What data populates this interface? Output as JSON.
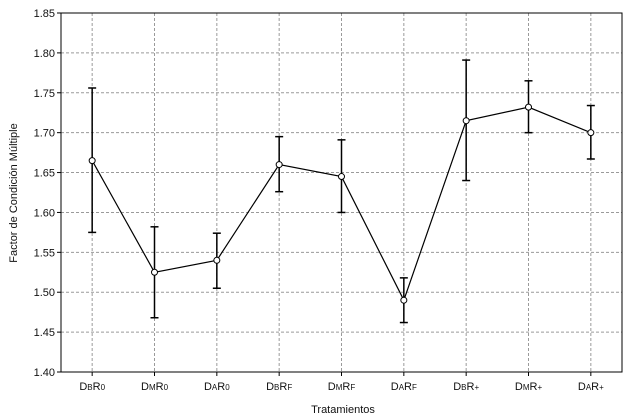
{
  "chart_data": {
    "type": "line",
    "title": "",
    "xlabel": "Tratamientos",
    "ylabel": "Factor de Condición Múltiple",
    "ylim": [
      1.4,
      1.85
    ],
    "yticks": [
      "1.40",
      "1.45",
      "1.50",
      "1.55",
      "1.60",
      "1.65",
      "1.70",
      "1.75",
      "1.80",
      "1.85"
    ],
    "grid": true,
    "grid_style": "dashed",
    "legend": "none",
    "colors": {
      "line": "#000000",
      "marker_fill": "#ffffff",
      "grid": "#9a9a9a",
      "axis": "#000000"
    },
    "categories": [
      {
        "main": "D",
        "sub1": "B",
        "big": "R",
        "sub2": "0"
      },
      {
        "main": "D",
        "sub1": "M",
        "big": "R",
        "sub2": "0"
      },
      {
        "main": "D",
        "sub1": "A",
        "big": "R",
        "sub2": "0"
      },
      {
        "main": "D",
        "sub1": "B",
        "big": "R",
        "sub2": "F"
      },
      {
        "main": "D",
        "sub1": "M",
        "big": "R",
        "sub2": "F"
      },
      {
        "main": "D",
        "sub1": "A",
        "big": "R",
        "sub2": "F"
      },
      {
        "main": "D",
        "sub1": "B",
        "big": "R",
        "sub2": "+"
      },
      {
        "main": "D",
        "sub1": "M",
        "big": "R",
        "sub2": "+"
      },
      {
        "main": "D",
        "sub1": "A",
        "big": "R",
        "sub2": "+"
      }
    ],
    "series": [
      {
        "values": [
          1.665,
          1.525,
          1.54,
          1.66,
          1.645,
          1.49,
          1.715,
          1.732,
          1.7
        ],
        "err_low": [
          1.575,
          1.468,
          1.505,
          1.626,
          1.6,
          1.462,
          1.64,
          1.7,
          1.667
        ],
        "err_high": [
          1.756,
          1.582,
          1.574,
          1.695,
          1.691,
          1.518,
          1.791,
          1.765,
          1.734
        ]
      }
    ]
  }
}
